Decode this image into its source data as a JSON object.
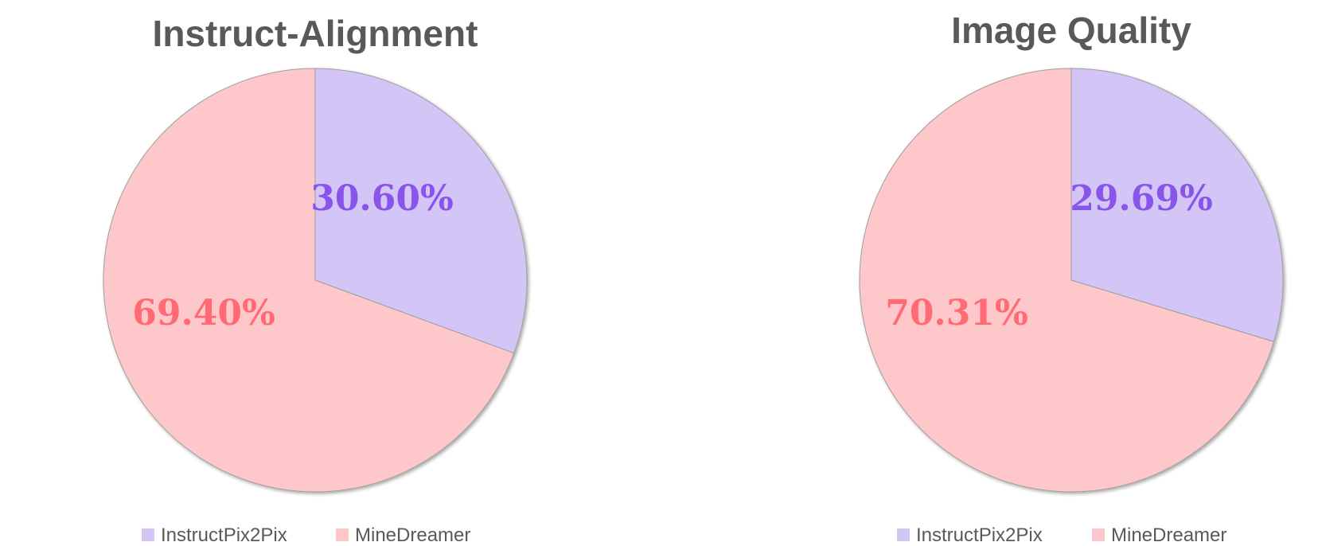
{
  "chart_data": [
    {
      "type": "pie",
      "title": "Instruct-Alignment",
      "slices": [
        {
          "name": "InstructPix2Pix",
          "value": 30.6,
          "label": "30.60%",
          "color": "#d4c5f7",
          "label_color": "#8854ea"
        },
        {
          "name": "MineDreamer",
          "value": 69.4,
          "label": "69.40%",
          "color": "#fec7c9",
          "label_color": "#ff6b74"
        }
      ],
      "legend_position": "bottom"
    },
    {
      "type": "pie",
      "title": "Image Quality",
      "slices": [
        {
          "name": "InstructPix2Pix",
          "value": 29.69,
          "label": "29.69%",
          "color": "#d4c5f7",
          "label_color": "#8854ea"
        },
        {
          "name": "MineDreamer",
          "value": 70.31,
          "label": "70.31%",
          "color": "#fec7c9",
          "label_color": "#ff6b74"
        }
      ],
      "legend_position": "bottom"
    }
  ]
}
